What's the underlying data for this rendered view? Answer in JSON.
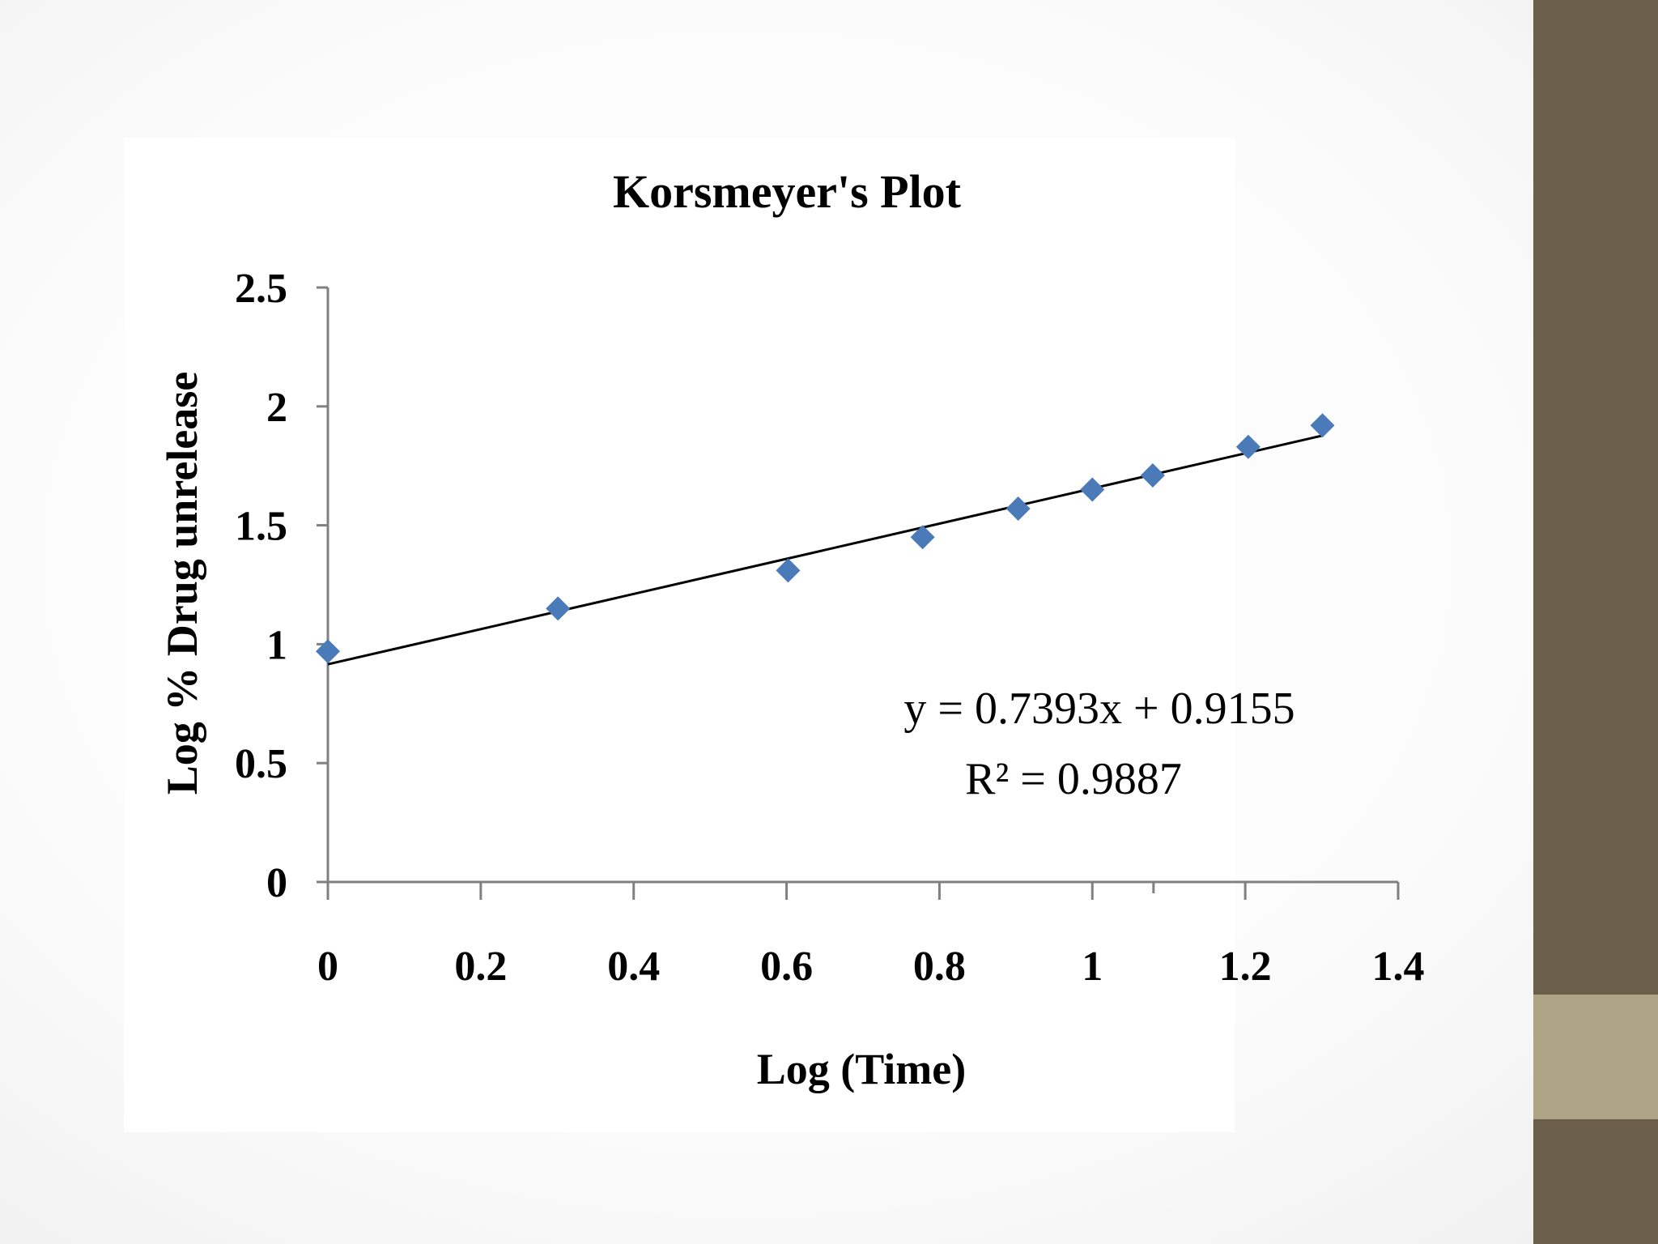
{
  "theme": {
    "band_color": "#6b5f4b",
    "band_accent_color": "#ada586",
    "marker_color": "#4a7ab8",
    "trendline_color": "#000000"
  },
  "chart_data": {
    "type": "scatter",
    "title": "Korsmeyer's Plot",
    "xlabel": "Log (Time)",
    "ylabel": "Log % Drug unrelease",
    "xlim": [
      0,
      1.4
    ],
    "ylim": [
      0,
      2.5
    ],
    "x_ticks": [
      "0",
      "0.2",
      "0.4",
      "0.6",
      "0.8",
      "1",
      "1.2",
      "1.4"
    ],
    "y_ticks": [
      "0",
      "0.5",
      "1",
      "1.5",
      "2",
      "2.5"
    ],
    "x_tick_values": [
      0,
      0.2,
      0.4,
      0.6,
      0.8,
      1.0,
      1.2,
      1.4
    ],
    "y_tick_values": [
      0,
      0.5,
      1.0,
      1.5,
      2.0,
      2.5
    ],
    "x_minor_tick_values": [
      1.08
    ],
    "series": [
      {
        "marker": "diamond",
        "x": [
          0,
          0.301,
          0.602,
          0.778,
          0.903,
          1.0,
          1.079,
          1.204,
          1.301
        ],
        "y": [
          0.97,
          1.15,
          1.31,
          1.45,
          1.57,
          1.65,
          1.71,
          1.83,
          1.92
        ]
      }
    ],
    "trendline": {
      "type": "linear",
      "slope": 0.7393,
      "intercept": 0.9155,
      "x_range": [
        0,
        1.301
      ],
      "equation_label": "y = 0.7393x + 0.9155",
      "r2_label": "R² = 0.9887"
    },
    "grid": false,
    "legend": "none"
  }
}
